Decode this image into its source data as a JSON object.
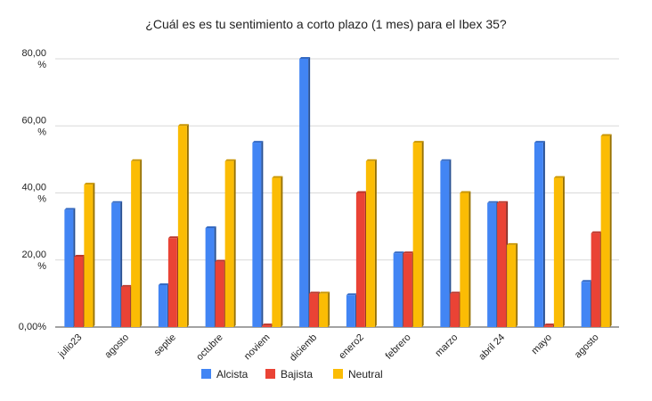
{
  "chart_data": {
    "type": "bar",
    "title": "¿Cuál es es tu sentimiento a corto plazo (1 mes) para el Ibex 35?",
    "xlabel": "",
    "ylabel": "",
    "ylim": [
      0,
      80
    ],
    "yticks": [
      {
        "value": 0,
        "line1": "0,00%",
        "line2": ""
      },
      {
        "value": 20,
        "line1": "20,00",
        "line2": "%"
      },
      {
        "value": 40,
        "line1": "40,00",
        "line2": "%"
      },
      {
        "value": 60,
        "line1": "60,00",
        "line2": "%"
      },
      {
        "value": 80,
        "line1": "80,00",
        "line2": "%"
      }
    ],
    "grid": true,
    "legend_position": "bottom",
    "categories": [
      "julio23",
      "agosto",
      "septie",
      "octubre",
      "noviem",
      "diciemb",
      "enero2",
      "febrero",
      "marzo",
      "abril 24",
      "mayo",
      "agosto"
    ],
    "series": [
      {
        "name": "Alcista",
        "color": "#4285F4",
        "values": [
          35,
          37,
          12.5,
          29.5,
          55,
          80,
          9.5,
          22,
          49.5,
          37,
          55,
          13.5
        ]
      },
      {
        "name": "Bajista",
        "color": "#EA4335",
        "values": [
          21,
          12,
          26.5,
          19.5,
          0.5,
          10,
          40,
          22,
          10,
          37,
          0.5,
          28
        ]
      },
      {
        "name": "Neutral",
        "color": "#FBBC04",
        "values": [
          42.5,
          49.5,
          60,
          49.5,
          44.5,
          10,
          49.5,
          55,
          40,
          24.5,
          44.5,
          57
        ]
      }
    ]
  }
}
